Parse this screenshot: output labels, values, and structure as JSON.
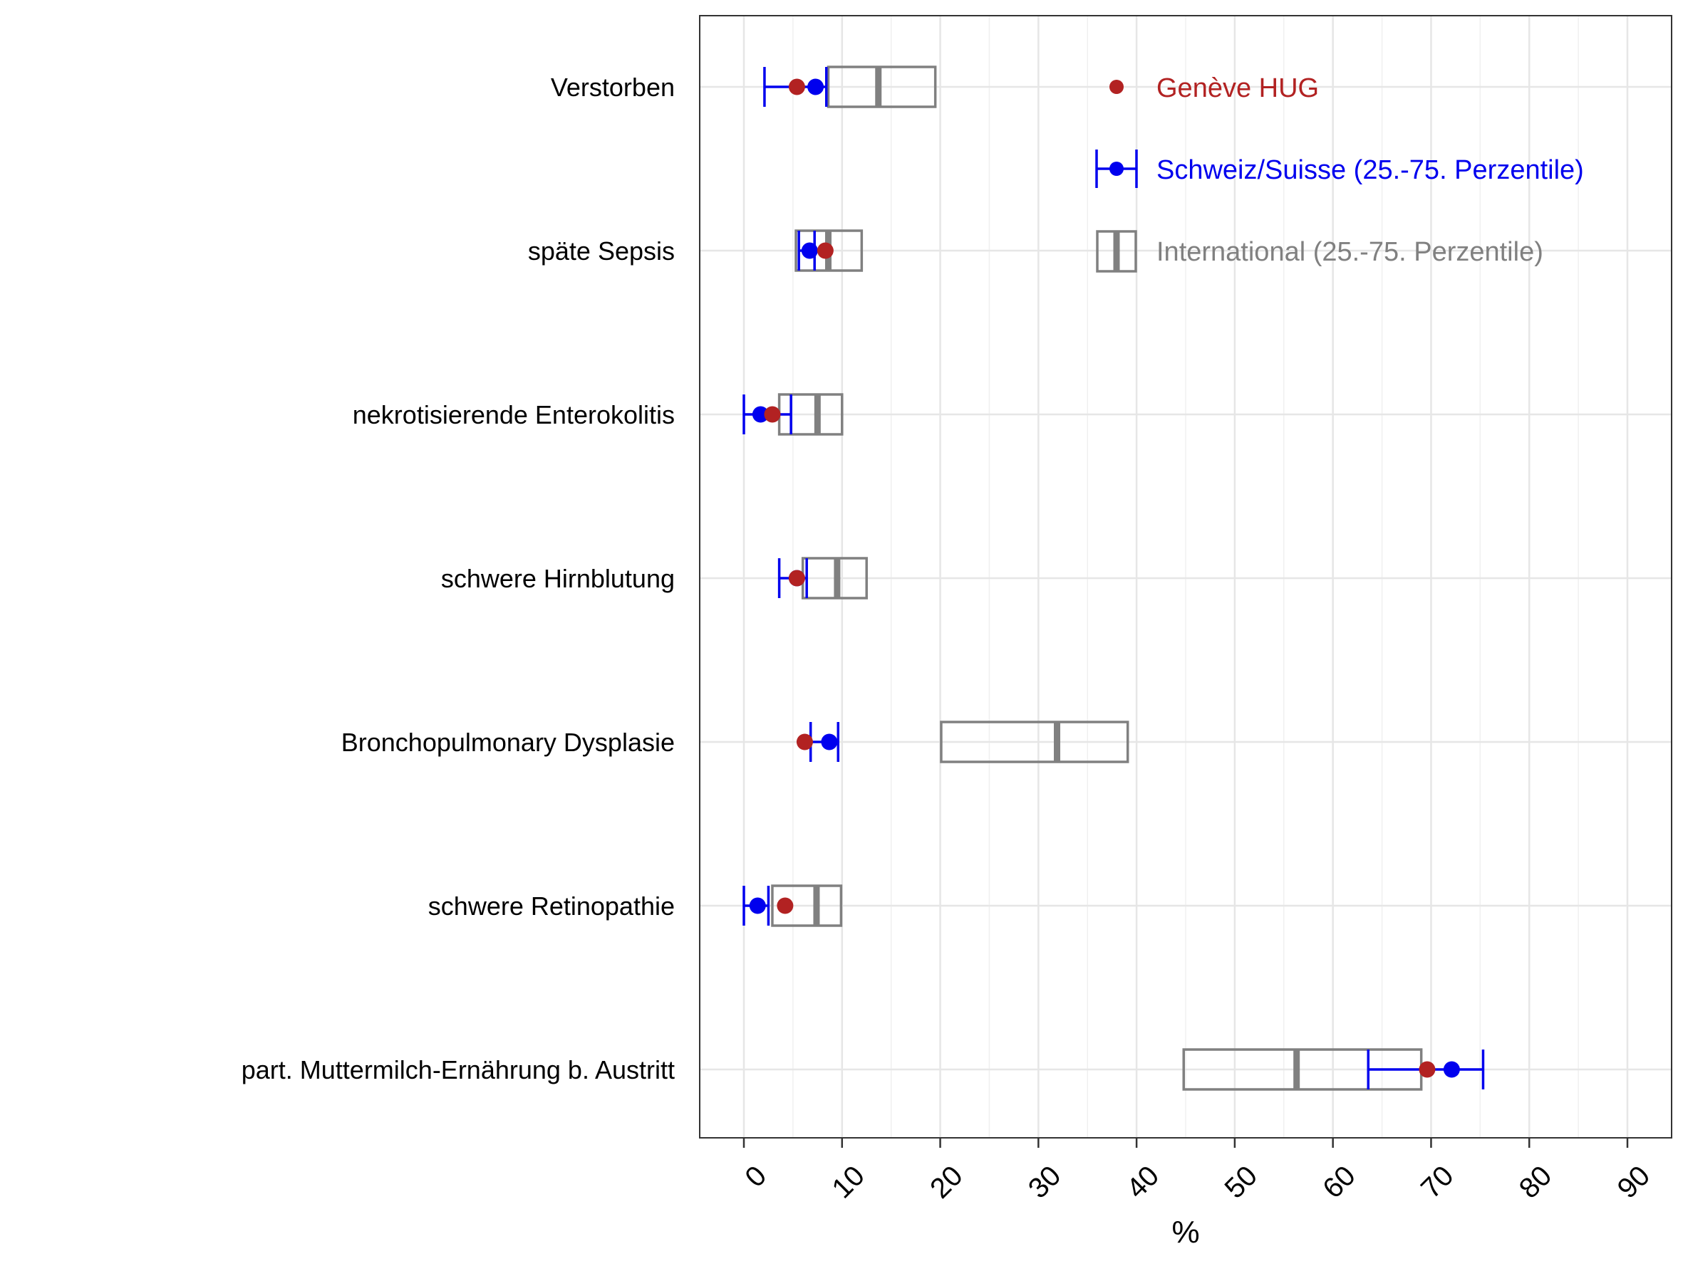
{
  "chart_data": {
    "type": "dot-range-boxplot",
    "xlabel": "%",
    "xlim": [
      -4.5,
      94.5
    ],
    "xticks": [
      0,
      10,
      20,
      30,
      40,
      50,
      60,
      70,
      80,
      90
    ],
    "xtick_labels": [
      "0",
      "10",
      "20",
      "30",
      "40",
      "50",
      "60",
      "70",
      "80",
      "90"
    ],
    "grid": true,
    "legend_position": "top-right (inside)",
    "categories": [
      "Verstorben",
      "späte Sepsis",
      "nekrotisierende Enterokolitis",
      "schwere Hirnblutung",
      "Bronchopulmonary Dysplasie",
      "schwere Retinopathie",
      "part. Muttermilch-Ernährung b. Austritt"
    ],
    "series": [
      {
        "name": "Genève HUG",
        "kind": "point",
        "color": "#b22222",
        "values": [
          5.4,
          8.3,
          2.9,
          5.4,
          6.2,
          4.2,
          69.6
        ]
      },
      {
        "name": "Schweiz/Suisse (25.-75. Perzentile)",
        "kind": "point-with-range",
        "color": "#0000ee",
        "values": [
          7.3,
          6.7,
          1.7,
          5.4,
          8.7,
          1.4,
          72.1
        ],
        "low": [
          2.1,
          5.6,
          0.0,
          3.6,
          6.8,
          0.0,
          63.6
        ],
        "high": [
          8.4,
          7.2,
          4.8,
          6.4,
          9.6,
          2.5,
          75.3
        ]
      },
      {
        "name": "International (25.-75. Perzentile)",
        "kind": "box",
        "color": "#808080",
        "q1": [
          8.6,
          5.3,
          3.6,
          6.0,
          20.1,
          2.9,
          44.8
        ],
        "median": [
          13.7,
          8.6,
          7.5,
          9.5,
          31.9,
          7.4,
          56.3
        ],
        "q3": [
          19.5,
          12.0,
          10.0,
          12.5,
          39.1,
          9.9,
          69.0
        ]
      }
    ]
  }
}
